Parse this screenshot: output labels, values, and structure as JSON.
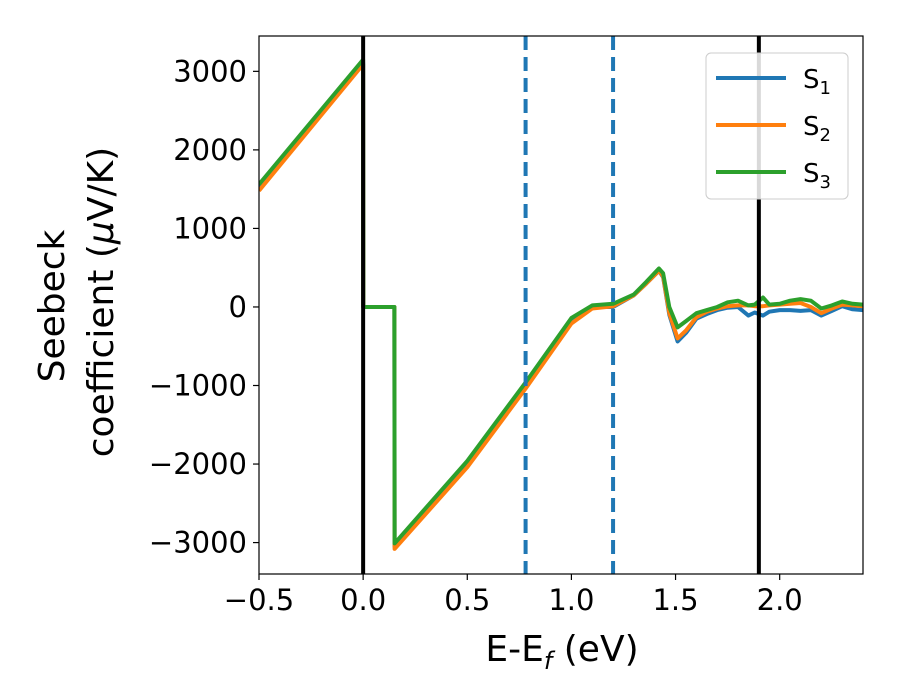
{
  "chart_data": {
    "type": "line",
    "xlabel": {
      "main": "E-E",
      "sub": "f",
      "suffix": " (eV)"
    },
    "ylabel_line1": "Seebeck",
    "ylabel_line2": {
      "pre": "coefficient  (",
      "greek": "μ",
      "post": "V/K)"
    },
    "xlim": [
      -0.5,
      2.4
    ],
    "ylim": [
      -3400,
      3450
    ],
    "xticks": [
      -0.5,
      0.0,
      0.5,
      1.0,
      1.5,
      2.0
    ],
    "xtick_labels": [
      "−0.5",
      "0.0",
      "0.5",
      "1.0",
      "1.5",
      "2.0"
    ],
    "yticks": [
      -3000,
      -2000,
      -1000,
      0,
      1000,
      2000,
      3000
    ],
    "ytick_labels": [
      "−3000",
      "−2000",
      "−1000",
      "0",
      "1000",
      "2000",
      "3000"
    ],
    "vlines_solid": [
      0.0,
      1.9
    ],
    "vlines_dashed": [
      0.78,
      1.2
    ],
    "vline_solid_color": "#000000",
    "vline_dashed_color": "#1f77b4",
    "legend_position": "top-right",
    "series": [
      {
        "name": "S",
        "sub": "1",
        "color": "#1f77b4",
        "x": [
          -0.5,
          0.0,
          0.001,
          0.15,
          0.151,
          0.5,
          0.78,
          1.0,
          1.1,
          1.2,
          1.3,
          1.36,
          1.42,
          1.44,
          1.47,
          1.51,
          1.55,
          1.6,
          1.65,
          1.7,
          1.75,
          1.8,
          1.85,
          1.88,
          1.92,
          1.95,
          2.0,
          2.05,
          2.1,
          2.15,
          2.2,
          2.25,
          2.3,
          2.35,
          2.4
        ],
        "y": [
          1510,
          3110,
          0,
          0,
          -3050,
          -2000,
          -1000,
          -180,
          0,
          0,
          150,
          300,
          460,
          380,
          -100,
          -440,
          -330,
          -150,
          -90,
          -40,
          -10,
          0,
          -110,
          -70,
          -110,
          -60,
          -40,
          -40,
          -50,
          -40,
          -110,
          -50,
          10,
          -30,
          -40
        ]
      },
      {
        "name": "S",
        "sub": "2",
        "color": "#ff7f0e",
        "x": [
          -0.5,
          0.0,
          0.001,
          0.15,
          0.151,
          0.5,
          0.78,
          1.0,
          1.1,
          1.2,
          1.3,
          1.36,
          1.42,
          1.44,
          1.47,
          1.51,
          1.55,
          1.6,
          1.65,
          1.7,
          1.75,
          1.8,
          1.85,
          1.88,
          1.92,
          1.95,
          2.0,
          2.05,
          2.1,
          2.15,
          2.2,
          2.25,
          2.3,
          2.35,
          2.4
        ],
        "y": [
          1480,
          3090,
          0,
          0,
          -3080,
          -2040,
          -1040,
          -210,
          -20,
          10,
          150,
          300,
          460,
          390,
          -80,
          -400,
          -300,
          -130,
          -60,
          -20,
          10,
          20,
          20,
          10,
          10,
          20,
          30,
          40,
          50,
          0,
          -80,
          -20,
          30,
          20,
          10
        ]
      },
      {
        "name": "S",
        "sub": "3",
        "color": "#2ca02c",
        "x": [
          -0.5,
          0.0,
          0.001,
          0.15,
          0.151,
          0.5,
          0.78,
          1.0,
          1.1,
          1.2,
          1.3,
          1.36,
          1.42,
          1.44,
          1.47,
          1.51,
          1.55,
          1.6,
          1.65,
          1.7,
          1.75,
          1.8,
          1.85,
          1.88,
          1.92,
          1.95,
          2.0,
          2.05,
          2.1,
          2.15,
          2.2,
          2.25,
          2.3,
          2.35,
          2.4
        ],
        "y": [
          1560,
          3150,
          0,
          0,
          -3010,
          -1960,
          -960,
          -140,
          20,
          40,
          160,
          320,
          490,
          430,
          0,
          -260,
          -180,
          -80,
          -40,
          0,
          60,
          80,
          20,
          30,
          120,
          30,
          40,
          80,
          100,
          80,
          -20,
          20,
          70,
          40,
          30
        ]
      }
    ]
  }
}
